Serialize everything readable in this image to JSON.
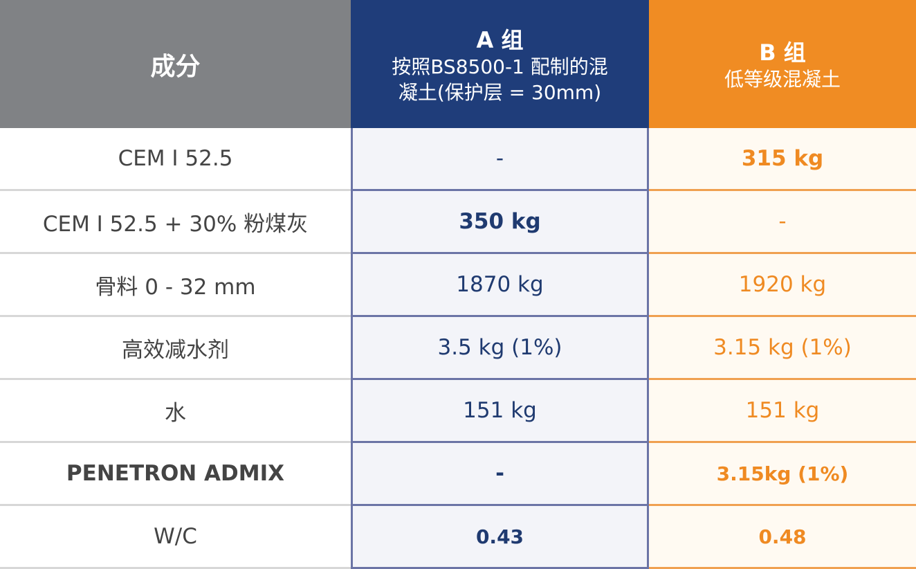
{
  "table": {
    "header": [
      {
        "title": "成分"
      },
      {
        "title": "A 组",
        "subtitle": "按照BS8500-1 配制的混凝土(保护层 = 30mm)"
      },
      {
        "title": "B 组",
        "subtitle": "低等级混凝土"
      }
    ],
    "rows": [
      [
        "CEM I 52.5",
        "-",
        "315 kg"
      ],
      [
        "CEM I 52.5 + 30% 粉煤灰",
        "350 kg",
        "-"
      ],
      [
        "骨料 0 - 32 mm",
        "1870 kg",
        "1920 kg"
      ],
      [
        "高效减水剂",
        "3.5 kg (1%)",
        "3.15 kg (1%)"
      ],
      [
        "水",
        "151 kg",
        "151 kg"
      ],
      [
        "PENETRON ADMIX",
        "-",
        "3.15kg (1%)"
      ],
      [
        "W/C",
        "0.43",
        "0.48"
      ]
    ]
  }
}
